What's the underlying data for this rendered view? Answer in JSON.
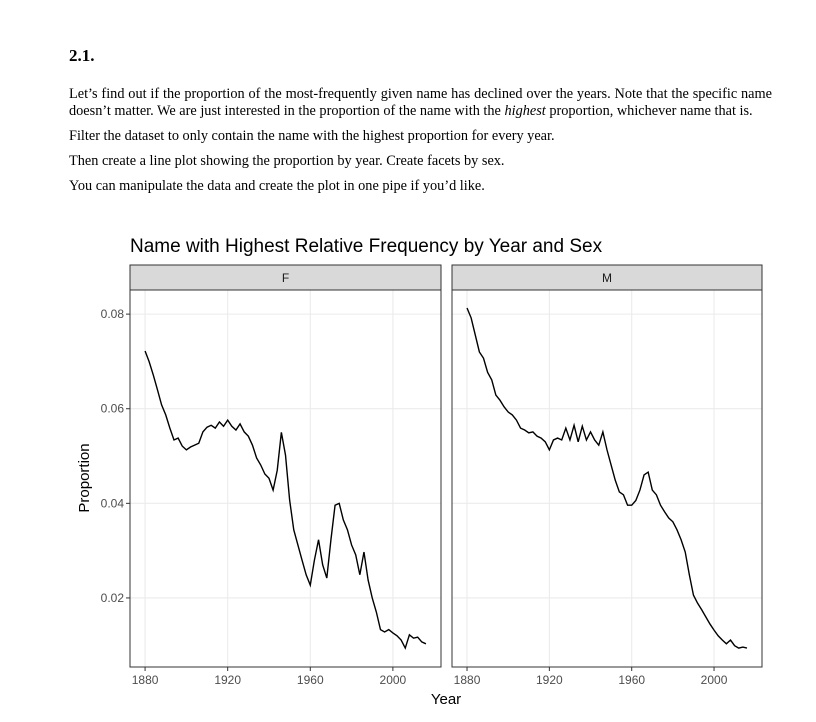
{
  "heading": "2.1.",
  "paragraphs": [
    [
      "Let’s find out if the proportion of the most-frequently given name has declined over the years. Note that the specific name doesn’t matter. We are just interested in the proportion of the name with the ",
      "highest",
      " proportion, whichever name that is."
    ],
    [
      "Filter the dataset to only contain the name with the highest proportion for every year."
    ],
    [
      "Then create a line plot showing the proportion by year. Create facets by sex."
    ],
    [
      "You can manipulate the data and create the plot in one pipe if you’d like."
    ]
  ],
  "chart_data": {
    "type": "line",
    "title": "Name with Highest Relative Frequency by Year and Sex",
    "x_label": "Year",
    "y_label": "Proportion",
    "facet_by": "series",
    "grid": true,
    "xlim": [
      1872.7,
      2023.3
    ],
    "xticks": [
      1880,
      1920,
      1960,
      2000
    ],
    "ylim": [
      0.0054,
      0.0851
    ],
    "yticks": [
      0.02,
      0.04,
      0.06,
      0.08
    ],
    "x": [
      1880,
      1882,
      1884,
      1886,
      1888,
      1890,
      1892,
      1894,
      1896,
      1898,
      1900,
      1902,
      1904,
      1906,
      1908,
      1910,
      1912,
      1914,
      1916,
      1918,
      1920,
      1922,
      1924,
      1926,
      1928,
      1930,
      1932,
      1934,
      1936,
      1938,
      1940,
      1942,
      1944,
      1946,
      1948,
      1950,
      1952,
      1954,
      1956,
      1958,
      1960,
      1962,
      1964,
      1966,
      1968,
      1970,
      1972,
      1974,
      1976,
      1978,
      1980,
      1982,
      1984,
      1986,
      1988,
      1990,
      1992,
      1994,
      1996,
      1998,
      2000,
      2002,
      2004,
      2006,
      2008,
      2010,
      2012,
      2014,
      2016
    ],
    "series": [
      {
        "name": "F",
        "color": "#000000",
        "values": [
          0.0722,
          0.0699,
          0.0671,
          0.064,
          0.0608,
          0.0587,
          0.0559,
          0.0534,
          0.0538,
          0.0521,
          0.0513,
          0.0519,
          0.0523,
          0.0527,
          0.0551,
          0.0561,
          0.0565,
          0.0559,
          0.0572,
          0.0563,
          0.0576,
          0.0563,
          0.0555,
          0.0568,
          0.0551,
          0.0542,
          0.0523,
          0.0496,
          0.0481,
          0.0462,
          0.0453,
          0.0428,
          0.047,
          0.055,
          0.0502,
          0.0407,
          0.0344,
          0.0312,
          0.028,
          0.0249,
          0.0227,
          0.028,
          0.0323,
          0.027,
          0.0242,
          0.0323,
          0.0396,
          0.04,
          0.0365,
          0.0344,
          0.0312,
          0.0291,
          0.0249,
          0.0297,
          0.0238,
          0.02,
          0.017,
          0.0133,
          0.0128,
          0.0133,
          0.0126,
          0.012,
          0.0111,
          0.0094,
          0.0122,
          0.0115,
          0.0117,
          0.0107,
          0.0103
        ]
      },
      {
        "name": "M",
        "color": "#000000",
        "values": [
          0.0813,
          0.0792,
          0.0756,
          0.072,
          0.0707,
          0.0677,
          0.0661,
          0.0629,
          0.0618,
          0.0604,
          0.0593,
          0.0587,
          0.0576,
          0.0559,
          0.0555,
          0.0549,
          0.0551,
          0.0542,
          0.0538,
          0.053,
          0.0513,
          0.0534,
          0.0538,
          0.0534,
          0.0559,
          0.0534,
          0.0565,
          0.053,
          0.0563,
          0.0534,
          0.0551,
          0.0534,
          0.0523,
          0.0551,
          0.0513,
          0.0481,
          0.0449,
          0.0424,
          0.0418,
          0.0396,
          0.0396,
          0.0406,
          0.0428,
          0.046,
          0.0466,
          0.0428,
          0.0418,
          0.0396,
          0.0382,
          0.0369,
          0.0361,
          0.0344,
          0.0323,
          0.0297,
          0.0249,
          0.0206,
          0.0189,
          0.0175,
          0.016,
          0.0145,
          0.0132,
          0.012,
          0.0111,
          0.0103,
          0.0111,
          0.0099,
          0.0094,
          0.0096,
          0.0094
        ]
      }
    ]
  }
}
